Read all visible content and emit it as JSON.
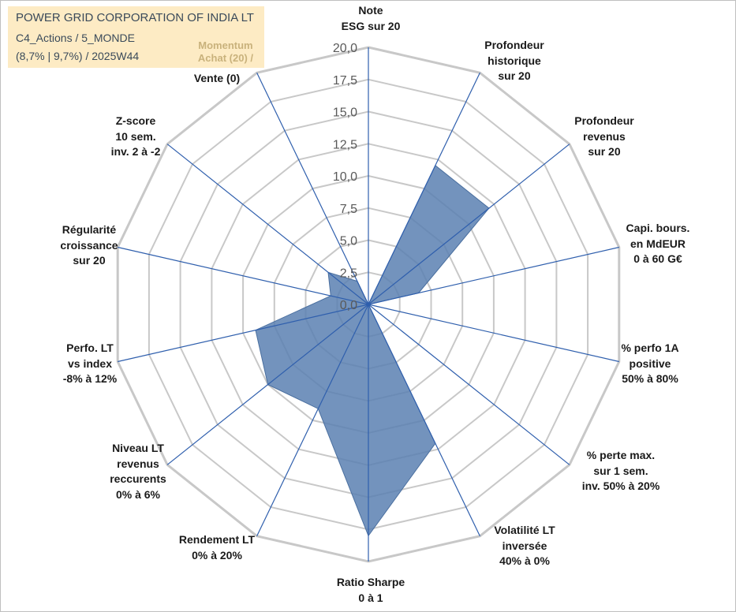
{
  "header": {
    "company": "POWER GRID CORPORATION OF INDIA LT",
    "category": "C4_Actions / 5_MONDE",
    "stats": "(8,7% | 9,7%) / 2025W44",
    "momentum_line1": "Momentum",
    "momentum_line2": "Achat (20) /",
    "momentum_line3": "Vente (0)"
  },
  "colors": {
    "fill": "#5a80b2",
    "spoke": "#2f5fad",
    "grid": "#c8c8c8",
    "header_bg": "#fdebc4"
  },
  "chart_data": {
    "type": "radar",
    "title": "POWER GRID CORPORATION OF INDIA LT",
    "rmin": 0,
    "rmax": 20,
    "tick_step": 2.5,
    "ticks": [
      "0,0",
      "2,5",
      "5,0",
      "7,5",
      "10,0",
      "12,5",
      "15,0",
      "17,5",
      "20,0"
    ],
    "axes": [
      {
        "lines": [
          "Note",
          "ESG sur 20"
        ],
        "value": 0
      },
      {
        "lines": [
          "Profondeur",
          "historique",
          "sur 20"
        ],
        "value": 12
      },
      {
        "lines": [
          "Profondeur",
          "revenus",
          "sur 20"
        ],
        "value": 12
      },
      {
        "lines": [
          "Capi. bours.",
          "en MdEUR",
          "0 à 60 G€"
        ],
        "value": 4
      },
      {
        "lines": [
          "% perfo 1A",
          "positive",
          "50% à 80%"
        ],
        "value": 0
      },
      {
        "lines": [
          "% perte max.",
          "sur 1 sem.",
          "inv. 50% à 20%"
        ],
        "value": 0
      },
      {
        "lines": [
          "Volatilité LT",
          "inversée",
          "40% à 0%"
        ],
        "value": 12
      },
      {
        "lines": [
          "Ratio Sharpe",
          "0 à 1"
        ],
        "value": 18
      },
      {
        "lines": [
          "Rendement LT",
          "0% à 20%"
        ],
        "value": 9
      },
      {
        "lines": [
          "Niveau LT",
          "revenus",
          "reccurents",
          "0% à 6%"
        ],
        "value": 10
      },
      {
        "lines": [
          "Perfo. LT",
          "vs index",
          "-8% à 12%"
        ],
        "value": 9
      },
      {
        "lines": [
          "Régularité",
          "croissance",
          "sur 20"
        ],
        "value": 3
      },
      {
        "lines": [
          "Z-score",
          "10 sem.",
          "inv. 2 à -2"
        ],
        "value": 4
      },
      {
        "lines": [
          "Momentum",
          "Achat (20) /",
          "Vente (0)"
        ],
        "value": 2
      }
    ]
  }
}
